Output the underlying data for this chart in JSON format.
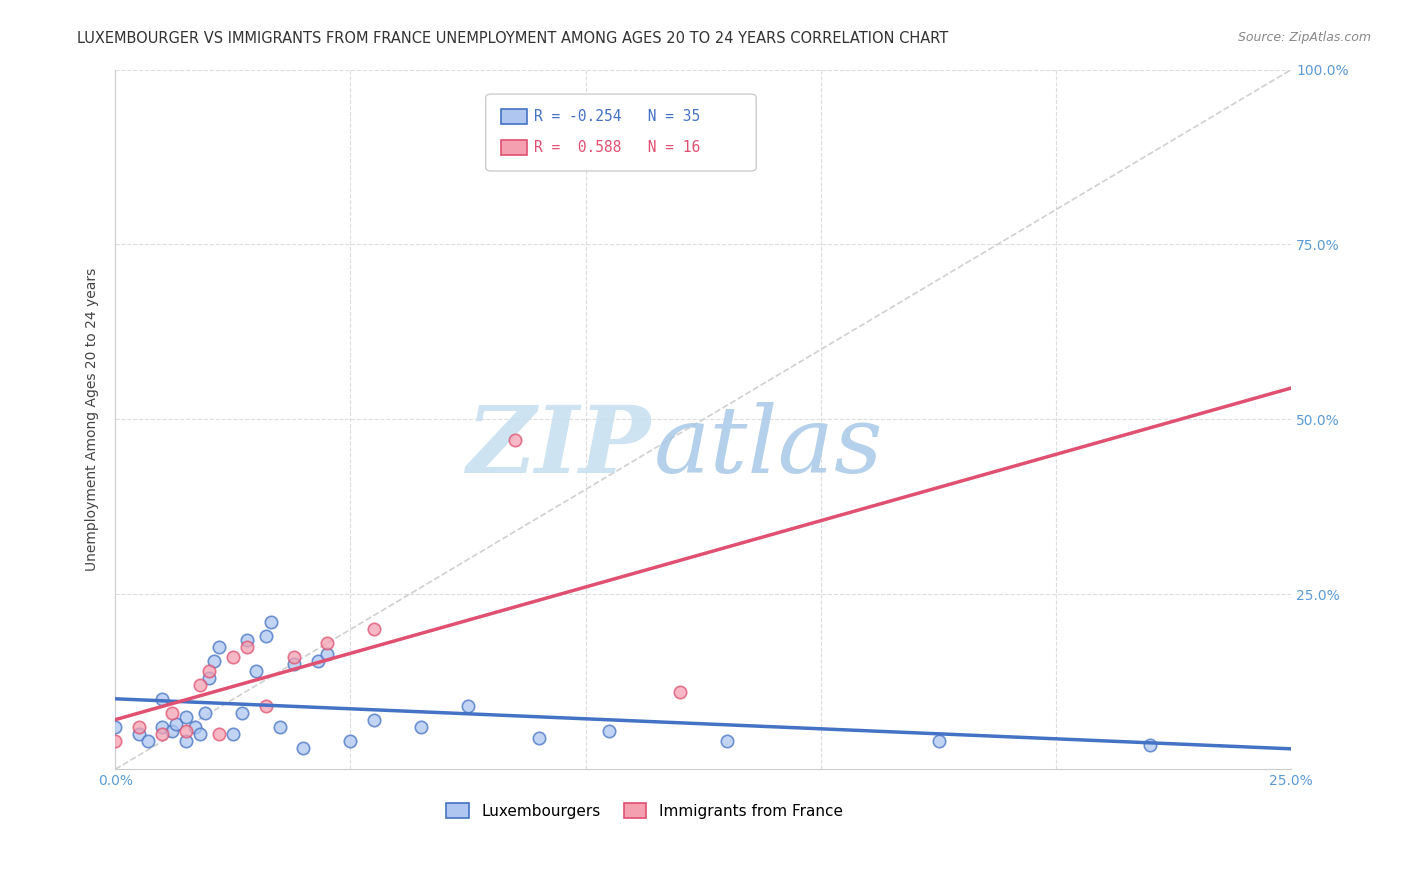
{
  "title": "LUXEMBOURGER VS IMMIGRANTS FROM FRANCE UNEMPLOYMENT AMONG AGES 20 TO 24 YEARS CORRELATION CHART",
  "source": "Source: ZipAtlas.com",
  "ylabel": "Unemployment Among Ages 20 to 24 years",
  "xlim": [
    0.0,
    0.25
  ],
  "ylim": [
    0.0,
    1.0
  ],
  "xticks": [
    0.0,
    0.05,
    0.1,
    0.15,
    0.2,
    0.25
  ],
  "yticks": [
    0.0,
    0.25,
    0.5,
    0.75,
    1.0
  ],
  "legend_entries": [
    {
      "label": "Luxembourgers",
      "color": "#aec6f0"
    },
    {
      "label": "Immigrants from France",
      "color": "#f4a0b0"
    }
  ],
  "corr_blue": {
    "R": "-0.254",
    "N": "35"
  },
  "corr_pink": {
    "R": "0.588",
    "N": "16"
  },
  "lux_x": [
    0.0,
    0.005,
    0.007,
    0.01,
    0.01,
    0.012,
    0.013,
    0.015,
    0.015,
    0.017,
    0.018,
    0.019,
    0.02,
    0.021,
    0.022,
    0.025,
    0.027,
    0.028,
    0.03,
    0.032,
    0.033,
    0.035,
    0.038,
    0.04,
    0.043,
    0.045,
    0.05,
    0.055,
    0.065,
    0.075,
    0.09,
    0.105,
    0.13,
    0.175,
    0.22
  ],
  "lux_y": [
    0.06,
    0.05,
    0.04,
    0.06,
    0.1,
    0.055,
    0.065,
    0.04,
    0.075,
    0.06,
    0.05,
    0.08,
    0.13,
    0.155,
    0.175,
    0.05,
    0.08,
    0.185,
    0.14,
    0.19,
    0.21,
    0.06,
    0.15,
    0.03,
    0.155,
    0.165,
    0.04,
    0.07,
    0.06,
    0.09,
    0.045,
    0.055,
    0.04,
    0.04,
    0.035
  ],
  "fra_x": [
    0.0,
    0.005,
    0.01,
    0.012,
    0.015,
    0.018,
    0.02,
    0.022,
    0.025,
    0.028,
    0.032,
    0.038,
    0.045,
    0.055,
    0.085,
    0.12
  ],
  "fra_y": [
    0.04,
    0.06,
    0.05,
    0.08,
    0.055,
    0.12,
    0.14,
    0.05,
    0.16,
    0.175,
    0.09,
    0.16,
    0.18,
    0.2,
    0.47,
    0.11
  ],
  "watermark_zip": "ZIP",
  "watermark_atlas": "atlas",
  "watermark_color_zip": "#c5dff0",
  "watermark_color_atlas": "#a8c8e8",
  "bg_color": "#ffffff",
  "grid_color": "#dddddd",
  "blue_line_color": "#4472c4",
  "pink_line_color": "#e05070",
  "ref_line_color": "#d0d0d0",
  "axis_label_color": "#5b9bd5",
  "title_color": "#333333",
  "marker_size": 80
}
